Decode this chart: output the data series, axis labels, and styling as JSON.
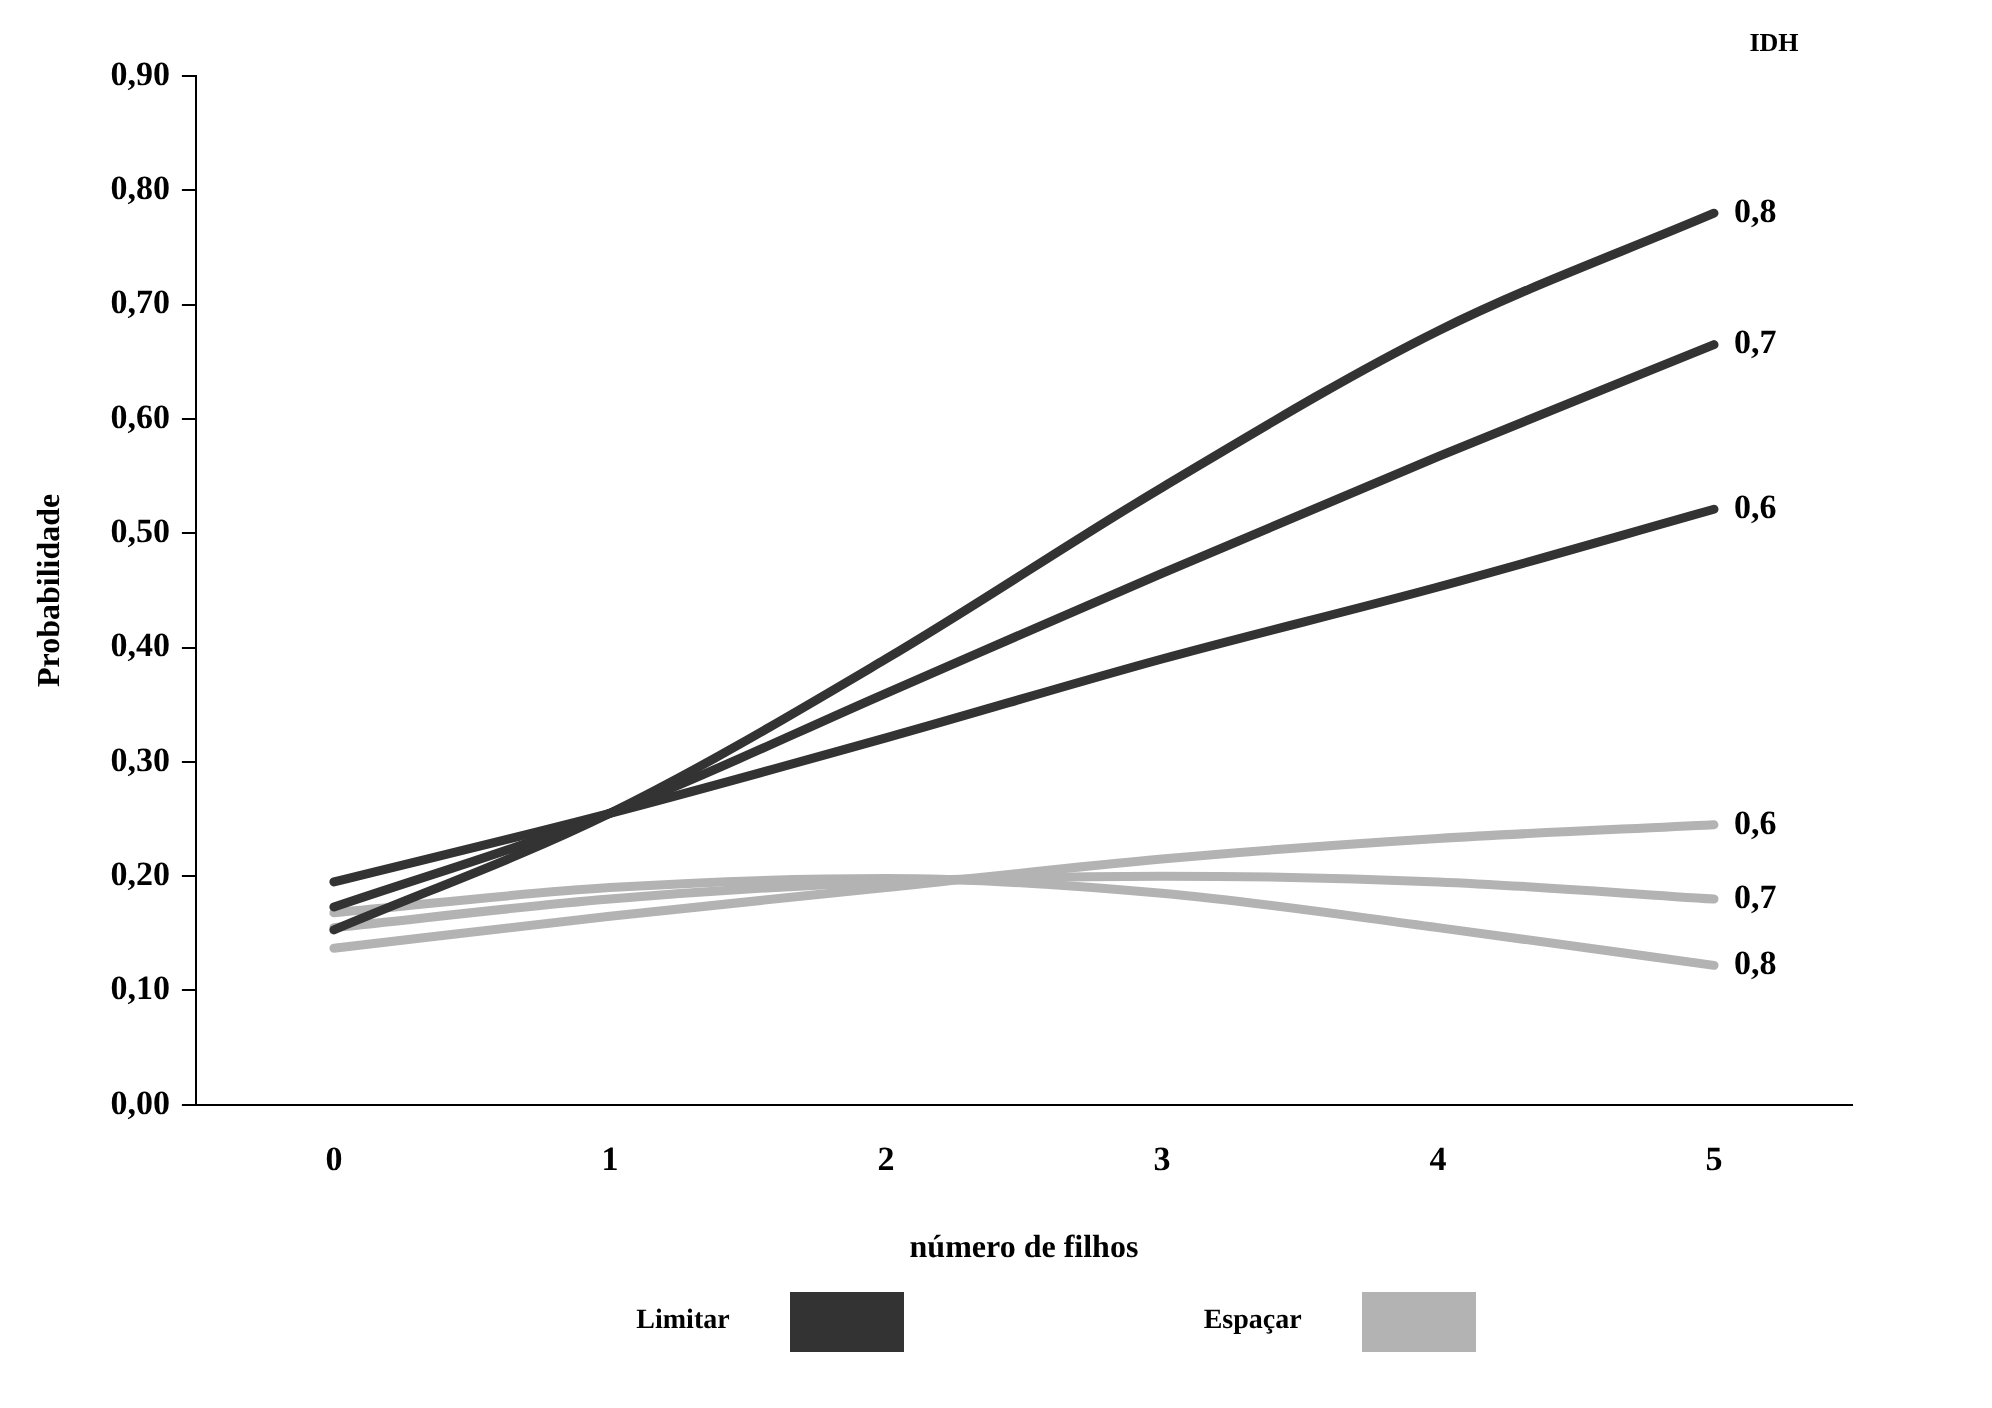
{
  "chart_data": {
    "type": "line",
    "xlabel": "número de filhos",
    "ylabel": "Probabilidade",
    "legend_title": "IDH",
    "categories": [
      "0",
      "1",
      "2",
      "3",
      "4",
      "5"
    ],
    "series": [
      {
        "name": "0,8",
        "color": "#333333",
        "values": [
          0.153,
          0.255,
          0.39,
          0.54,
          0.677,
          0.78
        ]
      },
      {
        "name": "0,7",
        "color": "#333333",
        "values": [
          0.173,
          0.255,
          0.36,
          0.465,
          0.567,
          0.665
        ]
      },
      {
        "name": "0,6",
        "color": "#333333",
        "values": [
          0.195,
          0.255,
          0.321,
          0.39,
          0.453,
          0.521
        ]
      },
      {
        "name": "0,6",
        "color": "#b3b3b3",
        "values": [
          0.137,
          0.165,
          0.19,
          0.215,
          0.233,
          0.245
        ]
      },
      {
        "name": "0,7",
        "color": "#b3b3b3",
        "values": [
          0.155,
          0.18,
          0.195,
          0.2,
          0.195,
          0.18
        ]
      },
      {
        "name": "0,8",
        "color": "#b3b3b3",
        "values": [
          0.168,
          0.19,
          0.198,
          0.185,
          0.155,
          0.122
        ]
      }
    ],
    "annotations": [
      "Limitar",
      "Espaçar"
    ],
    "ylim": [
      0,
      0.9
    ],
    "yticks": [
      {
        "value": 0,
        "label": "0,00"
      },
      {
        "value": 0.1,
        "label": "0,10"
      },
      {
        "value": 0.2,
        "label": "0,20"
      },
      {
        "value": 0.3,
        "label": "0,30"
      },
      {
        "value": 0.4,
        "label": "0,40"
      },
      {
        "value": 0.5,
        "label": "0,50"
      },
      {
        "value": 0.6,
        "label": "0,60"
      },
      {
        "value": 0.7,
        "label": "0,70"
      },
      {
        "value": 0.8,
        "label": "0,80"
      },
      {
        "value": 0.9,
        "label": "0,90"
      }
    ],
    "grid": false,
    "marker": "none",
    "line_style": "solid"
  }
}
